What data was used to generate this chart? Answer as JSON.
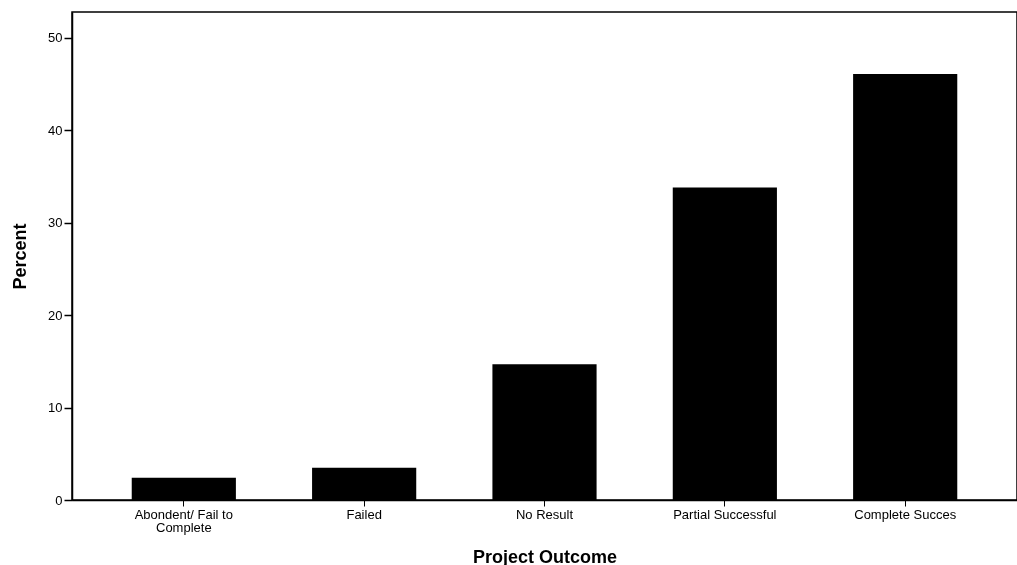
{
  "chart_data": {
    "type": "bar",
    "xlabel": "Project Outcome",
    "ylabel": "Percent",
    "categories": [
      "Abondent/ Fail to Complete",
      "Failed",
      "No Result",
      "Partial Successful",
      "Complete Succes"
    ],
    "values": [
      2.4,
      3.5,
      14.7,
      33.8,
      46.1
    ],
    "color": "#000000",
    "ylim": [
      0,
      52.8
    ],
    "yticks": [
      0,
      10,
      20,
      30,
      40,
      50
    ],
    "grid": false
  }
}
